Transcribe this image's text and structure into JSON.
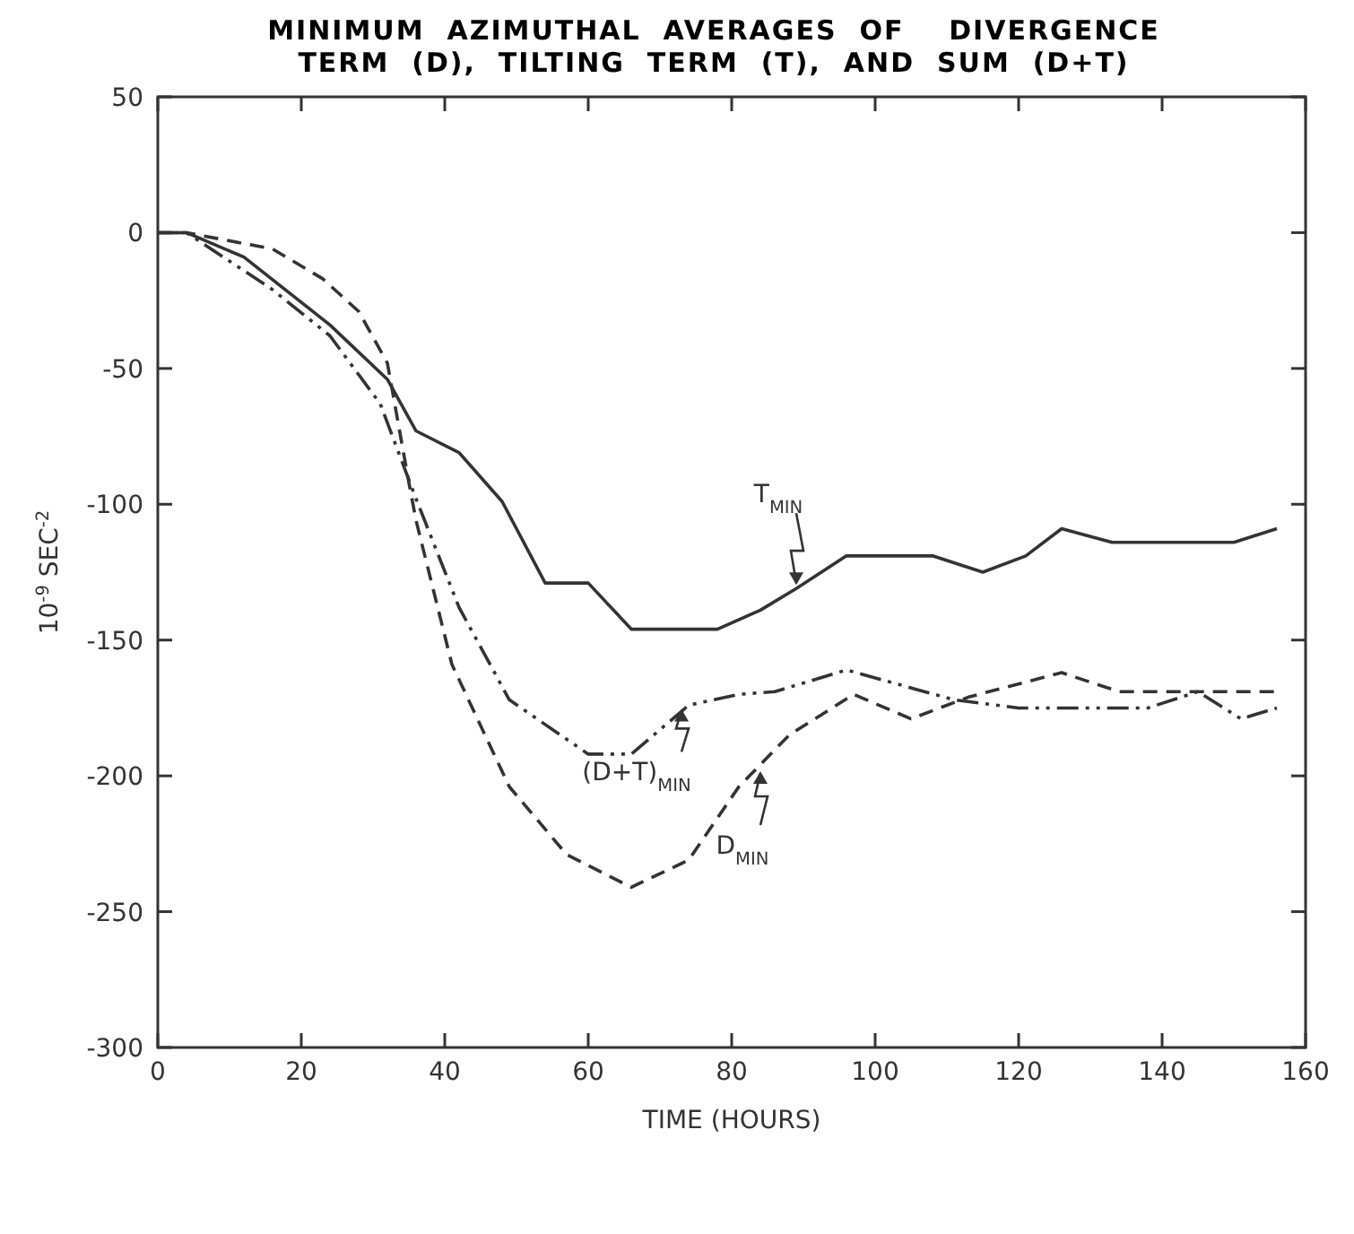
{
  "chart_data": {
    "type": "line",
    "title": "MINIMUM  AZIMUTHAL  AVERAGES  OF    DIVERGENCE\nTERM  (D),  TILTING  TERM  (T),  AND  SUM  (D+T)",
    "xlabel": "TIME (HOURS)",
    "ylabel": "10$^{-9}$ SEC$^{-2}$",
    "xlim": [
      0,
      160
    ],
    "xticks": [
      0,
      20,
      40,
      60,
      80,
      100,
      120,
      140,
      160
    ],
    "ylim": [
      -300,
      50
    ],
    "yticks": [
      -300,
      -250,
      -200,
      -150,
      -100,
      -50,
      0,
      50
    ],
    "marker": "none",
    "series": [
      {
        "color": "#333333",
        "line_style": "solid",
        "x": [
          0,
          4,
          12,
          24,
          32,
          36,
          42,
          48,
          54,
          60,
          66,
          78,
          84,
          89,
          96,
          108,
          115,
          121,
          126,
          133,
          150,
          156
        ],
        "values": [
          0,
          0,
          -9,
          -34,
          -54,
          -73,
          -81,
          -99,
          -129,
          -129,
          -146,
          -146,
          -139,
          -131,
          -119,
          -119,
          -125,
          -119,
          -109,
          -114,
          -114,
          -109
        ]
      },
      {
        "color": "#333333",
        "line_style": "dashed",
        "x": [
          0,
          4,
          16,
          23,
          28,
          32,
          35,
          36,
          41,
          49,
          57,
          66,
          74,
          81,
          88,
          97,
          105,
          113,
          126,
          134,
          156
        ],
        "values": [
          0,
          0,
          -6,
          -17,
          -29,
          -48,
          -92,
          -106,
          -159,
          -204,
          -229,
          -241,
          -231,
          -204,
          -185,
          -170,
          -179,
          -171,
          -162,
          -169,
          -169
        ]
      },
      {
        "color": "#333333",
        "line_style": "dotted",
        "x": [
          0,
          4,
          16,
          24,
          31,
          36,
          42,
          49,
          60,
          66,
          74,
          81,
          86,
          96,
          111,
          120,
          138,
          145,
          151,
          156
        ],
        "values": [
          0,
          0,
          -21,
          -38,
          -63,
          -98,
          -138,
          -172,
          -192,
          -192,
          -174,
          -170,
          -169,
          -161,
          -172,
          -175,
          -175,
          -169,
          -179,
          -175
        ]
      }
    ],
    "annotations": [
      {
        "text": "T$_{MIN}$",
        "x": 89,
        "y": -131
      },
      {
        "text": "(D+T)$_{MIN}$",
        "x": 73,
        "y": -174
      },
      {
        "text": "D$_{MIN}$",
        "x": 84,
        "y": -197
      }
    ]
  }
}
